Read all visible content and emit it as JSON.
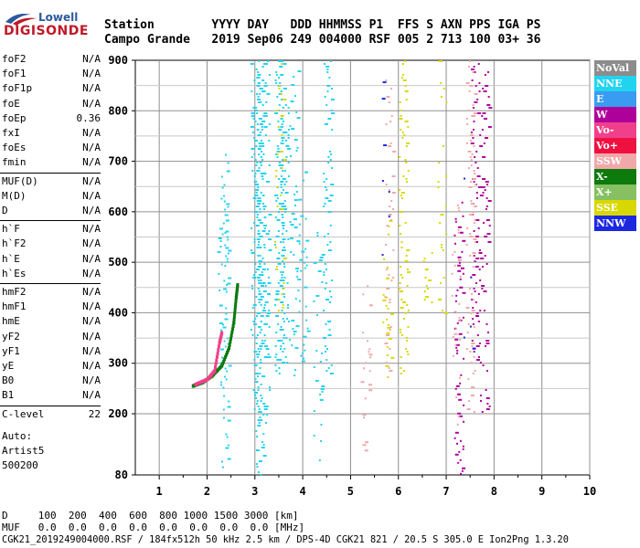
{
  "logo": {
    "line1": "Lowell",
    "line2": "DIGISONDE"
  },
  "header": {
    "row1": "Station        YYYY DAY   DDD HHMMSS P1  FFS S AXN PPS IGA PS",
    "row2": "Campo Grande   2019 Sep06 249 004000 RSF 005 2 713 100 03+ 36"
  },
  "params": [
    {
      "k": "foF2",
      "v": "N/A"
    },
    {
      "k": "foF1",
      "v": "N/A"
    },
    {
      "k": "foF1p",
      "v": "N/A"
    },
    {
      "k": "foE",
      "v": "N/A"
    },
    {
      "k": "foEp",
      "v": "0.36"
    },
    {
      "k": "fxI",
      "v": "N/A"
    },
    {
      "k": "foEs",
      "v": "N/A"
    },
    {
      "k": "fmin",
      "v": "N/A"
    },
    {
      "k": "MUF(D)",
      "v": "N/A"
    },
    {
      "k": "M(D)",
      "v": "N/A"
    },
    {
      "k": "D",
      "v": "N/A"
    },
    {
      "k": "h`F",
      "v": "N/A"
    },
    {
      "k": "h`F2",
      "v": "N/A"
    },
    {
      "k": "h`E",
      "v": "N/A"
    },
    {
      "k": "h`Es",
      "v": "N/A"
    },
    {
      "k": "hmF2",
      "v": "N/A"
    },
    {
      "k": "hmF1",
      "v": "N/A"
    },
    {
      "k": "hmE",
      "v": "N/A"
    },
    {
      "k": "yF2",
      "v": "N/A"
    },
    {
      "k": "yF1",
      "v": "N/A"
    },
    {
      "k": "yE",
      "v": "N/A"
    },
    {
      "k": "B0",
      "v": "N/A"
    },
    {
      "k": "B1",
      "v": "N/A"
    },
    {
      "k": "C-level",
      "v": "22"
    }
  ],
  "auto": {
    "label": "Auto:",
    "name": "Artist5",
    "version": "500200"
  },
  "legend": [
    {
      "label": "NoVal",
      "color": "#8c8c8c"
    },
    {
      "label": "NNE",
      "color": "#22d3f0"
    },
    {
      "label": "E",
      "color": "#3a9cf0"
    },
    {
      "label": "W",
      "color": "#b0009c"
    },
    {
      "label": "Vo-",
      "color": "#f0408c"
    },
    {
      "label": "Vo+",
      "color": "#f01040"
    },
    {
      "label": "SSW",
      "color": "#f0a8a8"
    },
    {
      "label": "X-",
      "color": "#0c7a0c"
    },
    {
      "label": "X+",
      "color": "#86c060"
    },
    {
      "label": "SSE",
      "color": "#d8d800"
    },
    {
      "label": "NNW",
      "color": "#1c28e0"
    }
  ],
  "footer": {
    "row1": "D     100  200  400  600  800 1000 1500 3000 [km]",
    "row2": "MUF   0.0  0.0  0.0  0.0  0.0  0.0  0.0  0.0 [MHz]",
    "row3": "CGK21_2019249004000.RSF / 184fx512h 50 kHz 2.5 km / DPS-4D CGK21 821 / 20.5 S 305.0 E Ion2Png 1.3.20"
  },
  "chart_data": {
    "type": "scatter",
    "xlim": [
      0.5,
      10
    ],
    "ylim": [
      80,
      900
    ],
    "x_ticks": [
      1,
      2,
      3,
      4,
      5,
      6,
      7,
      8,
      9,
      10
    ],
    "y_ticks": [
      80,
      200,
      300,
      400,
      500,
      600,
      700,
      800,
      900
    ],
    "grid": true,
    "xlabel": "",
    "ylabel": "",
    "traces": [
      {
        "color": "#22d3f0",
        "x": 2.35,
        "y0": 80,
        "y1": 720,
        "density": 0.55
      },
      {
        "color": "#22d3f0",
        "x": 2.3,
        "y0": 380,
        "y1": 560,
        "density": 0.4
      },
      {
        "color": "#22d3f0",
        "x": 3.0,
        "y0": 200,
        "y1": 900,
        "density": 0.85
      },
      {
        "color": "#22d3f0",
        "x": 3.1,
        "y0": 80,
        "y1": 900,
        "density": 0.8
      },
      {
        "color": "#22d3f0",
        "x": 3.2,
        "y0": 180,
        "y1": 900,
        "density": 0.5
      },
      {
        "color": "#22d3f0",
        "x": 3.5,
        "y0": 280,
        "y1": 900,
        "density": 0.85
      },
      {
        "color": "#22d3f0",
        "x": 3.6,
        "y0": 300,
        "y1": 900,
        "density": 0.6
      },
      {
        "color": "#22d3f0",
        "x": 3.8,
        "y0": 250,
        "y1": 880,
        "density": 0.4
      },
      {
        "color": "#22d3f0",
        "x": 4.0,
        "y0": 300,
        "y1": 680,
        "density": 0.45
      },
      {
        "color": "#22d3f0",
        "x": 4.3,
        "y0": 100,
        "y1": 560,
        "density": 0.3
      },
      {
        "color": "#22d3f0",
        "x": 4.5,
        "y0": 280,
        "y1": 900,
        "density": 0.6
      },
      {
        "color": "#d8d800",
        "x": 3.5,
        "y0": 400,
        "y1": 900,
        "density": 0.35
      },
      {
        "color": "#d8d800",
        "x": 5.75,
        "y0": 260,
        "y1": 600,
        "density": 0.4
      },
      {
        "color": "#d8d800",
        "x": 6.1,
        "y0": 280,
        "y1": 900,
        "density": 0.55
      },
      {
        "color": "#d8d800",
        "x": 6.6,
        "y0": 420,
        "y1": 520,
        "density": 0.5
      },
      {
        "color": "#d8d800",
        "x": 6.9,
        "y0": 400,
        "y1": 900,
        "density": 0.25
      },
      {
        "color": "#b0009c",
        "x": 7.25,
        "y0": 80,
        "y1": 620,
        "density": 0.6
      },
      {
        "color": "#b0009c",
        "x": 7.6,
        "y0": 300,
        "y1": 900,
        "density": 0.6
      },
      {
        "color": "#b0009c",
        "x": 7.8,
        "y0": 200,
        "y1": 900,
        "density": 0.45
      },
      {
        "color": "#f0a8a8",
        "x": 5.3,
        "y0": 120,
        "y1": 460,
        "density": 0.25
      },
      {
        "color": "#f0a8a8",
        "x": 5.8,
        "y0": 260,
        "y1": 900,
        "density": 0.3
      },
      {
        "color": "#f0a8a8",
        "x": 7.5,
        "y0": 200,
        "y1": 900,
        "density": 0.5
      },
      {
        "color": "#f0a8a8",
        "x": 7.2,
        "y0": 180,
        "y1": 620,
        "density": 0.25
      },
      {
        "color": "#1c28e0",
        "x": 5.7,
        "y0": 480,
        "y1": 880,
        "density": 0.08
      },
      {
        "color": "#1c28e0",
        "x": 7.45,
        "y0": 300,
        "y1": 700,
        "density": 0.06
      }
    ],
    "curve": [
      {
        "x": 1.7,
        "y": 255
      },
      {
        "x": 1.9,
        "y": 262
      },
      {
        "x": 2.1,
        "y": 275
      },
      {
        "x": 2.3,
        "y": 295
      },
      {
        "x": 2.45,
        "y": 330
      },
      {
        "x": 2.55,
        "y": 380
      },
      {
        "x": 2.6,
        "y": 430
      },
      {
        "x": 2.63,
        "y": 455
      }
    ],
    "curve_color": "#0c7a0c",
    "curve2": [
      {
        "x": 1.75,
        "y": 258
      },
      {
        "x": 2.0,
        "y": 268
      },
      {
        "x": 2.15,
        "y": 285
      },
      {
        "x": 2.25,
        "y": 340
      },
      {
        "x": 2.3,
        "y": 360
      }
    ],
    "curve2_color": "#f0408c"
  }
}
